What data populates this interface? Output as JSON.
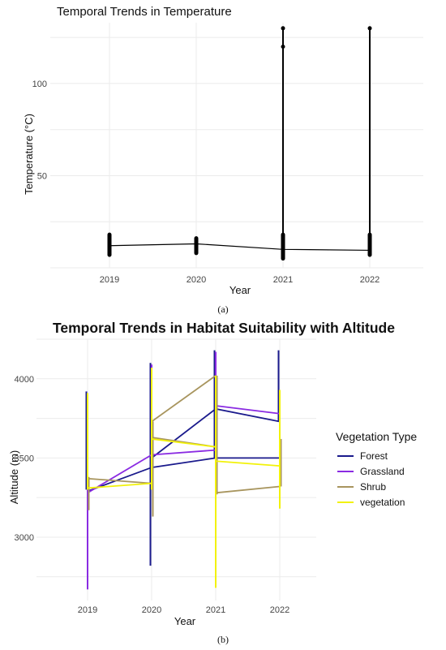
{
  "chart_data": [
    {
      "type": "line",
      "title": "Temporal Trends in Temperature",
      "xlabel": "Year",
      "ylabel": "Temperature (°C)",
      "caption": "(a)",
      "categories": [
        "2019",
        "2020",
        "2021",
        "2022"
      ],
      "y_ticks": [
        50,
        100
      ],
      "ylim": [
        0,
        133
      ],
      "grid": true,
      "mean_line": [
        12,
        13,
        10,
        9.5
      ],
      "ranges": [
        {
          "year": "2019",
          "min": 7,
          "max": 18
        },
        {
          "year": "2020",
          "min": 8,
          "max": 16
        },
        {
          "year": "2021",
          "min": 5,
          "max": 18
        },
        {
          "year": "2022",
          "min": 7,
          "max": 18
        }
      ],
      "outliers": [
        {
          "year": "2021",
          "values": [
            130,
            120
          ]
        },
        {
          "year": "2022",
          "values": [
            130
          ]
        }
      ],
      "whiskers": [
        {
          "year": "2021",
          "from": 18,
          "to": 130
        },
        {
          "year": "2022",
          "from": 18,
          "to": 130
        }
      ]
    },
    {
      "type": "line",
      "title": "Temporal Trends in Habitat Suitability with Altitude",
      "xlabel": "Year",
      "ylabel": "Altitude (m)",
      "caption": "(b)",
      "categories": [
        "2019",
        "2020",
        "2021",
        "2022"
      ],
      "y_ticks": [
        3000,
        3500,
        4000
      ],
      "ylim": [
        2600,
        4250
      ],
      "grid": true,
      "legend": {
        "title": "Vegetation Type",
        "position": "right"
      },
      "series": [
        {
          "name": "Forest",
          "color": "#1a1a8c",
          "line": [
            3290,
            3440,
            3500,
            3500
          ],
          "line2": [
            null,
            3500,
            3810,
            3730
          ],
          "ranges": [
            [
              3300,
              3920
            ],
            [
              2820,
              4100
            ],
            [
              3500,
              4180
            ],
            [
              3730,
              4180
            ]
          ]
        },
        {
          "name": "Grassland",
          "color": "#8a2be2",
          "line": [
            3280,
            3520,
            3550,
            null
          ],
          "line2": [
            null,
            null,
            3830,
            3780
          ],
          "ranges": [
            [
              2670,
              3300
            ],
            [
              3520,
              4090
            ],
            [
              3550,
              4170
            ],
            [
              3200,
              3780
            ]
          ]
        },
        {
          "name": "Shrub",
          "color": "#a8955e",
          "line": [
            3370,
            3340,
            null,
            null
          ],
          "line2": [
            null,
            3730,
            4020,
            null
          ],
          "line3": [
            null,
            3630,
            3570,
            null
          ],
          "line4": [
            null,
            null,
            3280,
            3320
          ],
          "ranges": [
            [
              3170,
              3380
            ],
            [
              3130,
              3730
            ],
            [
              3270,
              4020
            ],
            [
              3320,
              3620
            ]
          ]
        },
        {
          "name": "vegetation",
          "color": "#f2f20a",
          "line": [
            3310,
            3340,
            null,
            null
          ],
          "line2": [
            null,
            3620,
            3570,
            null
          ],
          "line3": [
            null,
            null,
            3480,
            3450
          ],
          "ranges": [
            [
              3300,
              3910
            ],
            [
              3300,
              4070
            ],
            [
              2680,
              4020
            ],
            [
              3180,
              3930
            ]
          ]
        }
      ]
    }
  ]
}
